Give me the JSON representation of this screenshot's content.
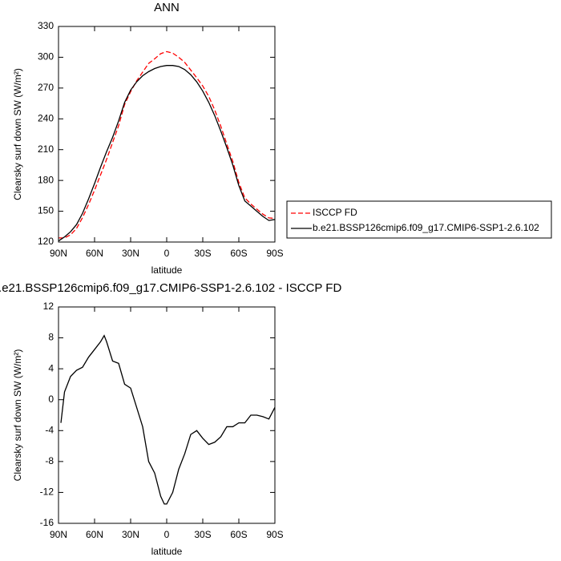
{
  "chart_data": [
    {
      "type": "line",
      "title": "ANN",
      "xlabel": "latitude",
      "ylabel": "Clearsky surf down SW (W/m²)",
      "x": [
        90,
        85,
        80,
        75,
        70,
        65,
        60,
        55,
        50,
        45,
        40,
        35,
        30,
        25,
        20,
        15,
        10,
        5,
        0,
        -5,
        -10,
        -15,
        -20,
        -25,
        -30,
        -35,
        -40,
        -45,
        -50,
        -55,
        -60,
        -65,
        -70,
        -75,
        -80,
        -85,
        -90
      ],
      "series": [
        {
          "name": "ISCCP FD",
          "color": "#ff0000",
          "dash": true,
          "values": [
            124,
            124,
            127,
            133.2,
            143.8,
            156.5,
            170.5,
            185.5,
            200.5,
            217,
            233.3,
            254,
            266.5,
            277,
            285.5,
            294,
            298.5,
            303.5,
            305.5,
            304,
            300,
            295,
            287.5,
            280,
            272,
            261.8,
            248.5,
            232.8,
            215.5,
            198.5,
            178,
            163,
            157,
            152,
            147.2,
            143.5,
            143
          ]
        },
        {
          "name": "b.e21.BSSP126cmip6.f09_g17.CMIP6-SSP1-2.6.102",
          "color": "#000000",
          "dash": false,
          "values": [
            121,
            125,
            130,
            137,
            148,
            162,
            177,
            193,
            208,
            222,
            238,
            256,
            268,
            276,
            282,
            286,
            289,
            291,
            292,
            292,
            291,
            288,
            283,
            276,
            267,
            256,
            243,
            228,
            212,
            195,
            175,
            160,
            155,
            150,
            145,
            141,
            142
          ]
        }
      ],
      "xlim": [
        90,
        -90
      ],
      "xticks": [
        {
          "value": 90,
          "label": "90N"
        },
        {
          "value": 60,
          "label": "60N"
        },
        {
          "value": 30,
          "label": "30N"
        },
        0,
        {
          "value": -30,
          "label": "30S"
        },
        {
          "value": -60,
          "label": "60S"
        },
        {
          "value": -90,
          "label": "90S"
        }
      ],
      "ylim": [
        120,
        330
      ],
      "yticks": [
        120,
        150,
        180,
        210,
        240,
        270,
        300,
        330
      ],
      "legend": "outside-right"
    },
    {
      "type": "line",
      "title": "b.e21.BSSP126cmip6.f09_g17.CMIP6-SSP1-2.6.102 - ISCCP FD",
      "xlabel": "latitude",
      "ylabel": "Clearsky surf down SW (W/m²)",
      "x": [
        88,
        85,
        80,
        75,
        70,
        65,
        60,
        55,
        52,
        50,
        45,
        40,
        35,
        30,
        25,
        20,
        15,
        10,
        5,
        2,
        0,
        -5,
        -10,
        -15,
        -20,
        -25,
        -30,
        -35,
        -40,
        -45,
        -50,
        -55,
        -60,
        -65,
        -70,
        -75,
        -80,
        -85,
        -90
      ],
      "series": [
        {
          "color": "#000000",
          "dash": false,
          "values": [
            -3,
            1,
            3,
            3.8,
            4.2,
            5.5,
            6.5,
            7.5,
            8.3,
            7.5,
            5,
            4.7,
            2,
            1.5,
            -1,
            -3.5,
            -8,
            -9.5,
            -12.5,
            -13.5,
            -13.5,
            -12,
            -9,
            -7,
            -4.5,
            -4,
            -5,
            -5.8,
            -5.5,
            -4.8,
            -3.5,
            -3.5,
            -3,
            -3,
            -2,
            -2,
            -2.2,
            -2.5,
            -1
          ]
        }
      ],
      "xlim": [
        90,
        -90
      ],
      "xticks": [
        {
          "value": 90,
          "label": "90N"
        },
        {
          "value": 60,
          "label": "60N"
        },
        {
          "value": 30,
          "label": "30N"
        },
        0,
        {
          "value": -30,
          "label": "30S"
        },
        {
          "value": -60,
          "label": "60S"
        },
        {
          "value": -90,
          "label": "90S"
        }
      ],
      "ylim": [
        -16,
        12
      ],
      "yticks": [
        -16,
        -12,
        -8,
        -4,
        0,
        4,
        8,
        12
      ]
    }
  ]
}
